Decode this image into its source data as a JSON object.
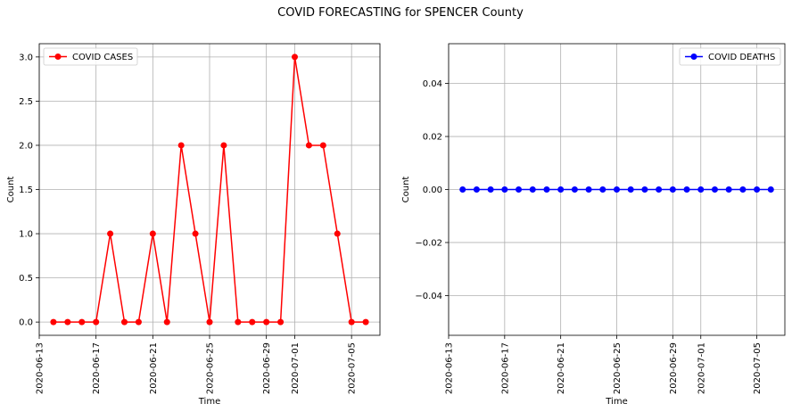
{
  "figure": {
    "title": "COVID FORECASTING for SPENCER County"
  },
  "chart_data": [
    {
      "type": "line",
      "xlabel": "Time",
      "ylabel": "Count",
      "x": [
        "2020-06-14",
        "2020-06-15",
        "2020-06-16",
        "2020-06-17",
        "2020-06-18",
        "2020-06-19",
        "2020-06-20",
        "2020-06-21",
        "2020-06-22",
        "2020-06-23",
        "2020-06-24",
        "2020-06-25",
        "2020-06-26",
        "2020-06-27",
        "2020-06-28",
        "2020-06-29",
        "2020-06-30",
        "2020-07-01",
        "2020-07-02",
        "2020-07-03",
        "2020-07-04",
        "2020-07-05",
        "2020-07-06"
      ],
      "series": [
        {
          "name": "COVID CASES",
          "color": "#ff0000",
          "marker": "circle",
          "values": [
            0,
            0,
            0,
            0,
            1,
            0,
            0,
            1,
            0,
            2,
            1,
            0,
            2,
            0,
            0,
            0,
            0,
            3,
            2,
            2,
            1,
            0,
            0
          ]
        }
      ],
      "xticks": [
        "2020-06-13",
        "2020-06-17",
        "2020-06-21",
        "2020-06-25",
        "2020-06-29",
        "2020-07-01",
        "2020-07-05"
      ],
      "yticks": [
        0.0,
        0.5,
        1.0,
        1.5,
        2.0,
        2.5,
        3.0
      ],
      "ytick_labels": [
        "0.0",
        "0.5",
        "1.0",
        "1.5",
        "2.0",
        "2.5",
        "3.0"
      ],
      "xlim": [
        "2020-06-13",
        "2020-07-07"
      ],
      "ylim": [
        -0.15,
        3.15
      ],
      "grid": true,
      "legend_position": "upper left"
    },
    {
      "type": "line",
      "xlabel": "Time",
      "ylabel": "Count",
      "x": [
        "2020-06-14",
        "2020-06-15",
        "2020-06-16",
        "2020-06-17",
        "2020-06-18",
        "2020-06-19",
        "2020-06-20",
        "2020-06-21",
        "2020-06-22",
        "2020-06-23",
        "2020-06-24",
        "2020-06-25",
        "2020-06-26",
        "2020-06-27",
        "2020-06-28",
        "2020-06-29",
        "2020-06-30",
        "2020-07-01",
        "2020-07-02",
        "2020-07-03",
        "2020-07-04",
        "2020-07-05",
        "2020-07-06"
      ],
      "series": [
        {
          "name": "COVID DEATHS",
          "color": "#0000ff",
          "marker": "circle",
          "values": [
            0,
            0,
            0,
            0,
            0,
            0,
            0,
            0,
            0,
            0,
            0,
            0,
            0,
            0,
            0,
            0,
            0,
            0,
            0,
            0,
            0,
            0,
            0
          ]
        }
      ],
      "xticks": [
        "2020-06-13",
        "2020-06-17",
        "2020-06-21",
        "2020-06-25",
        "2020-06-29",
        "2020-07-01",
        "2020-07-05"
      ],
      "yticks": [
        -0.04,
        -0.02,
        0.0,
        0.02,
        0.04
      ],
      "ytick_labels": [
        "−0.04",
        "−0.02",
        "0.00",
        "0.02",
        "0.04"
      ],
      "xlim": [
        "2020-06-13",
        "2020-07-07"
      ],
      "ylim": [
        -0.055,
        0.055
      ],
      "grid": true,
      "legend_position": "upper right"
    }
  ]
}
